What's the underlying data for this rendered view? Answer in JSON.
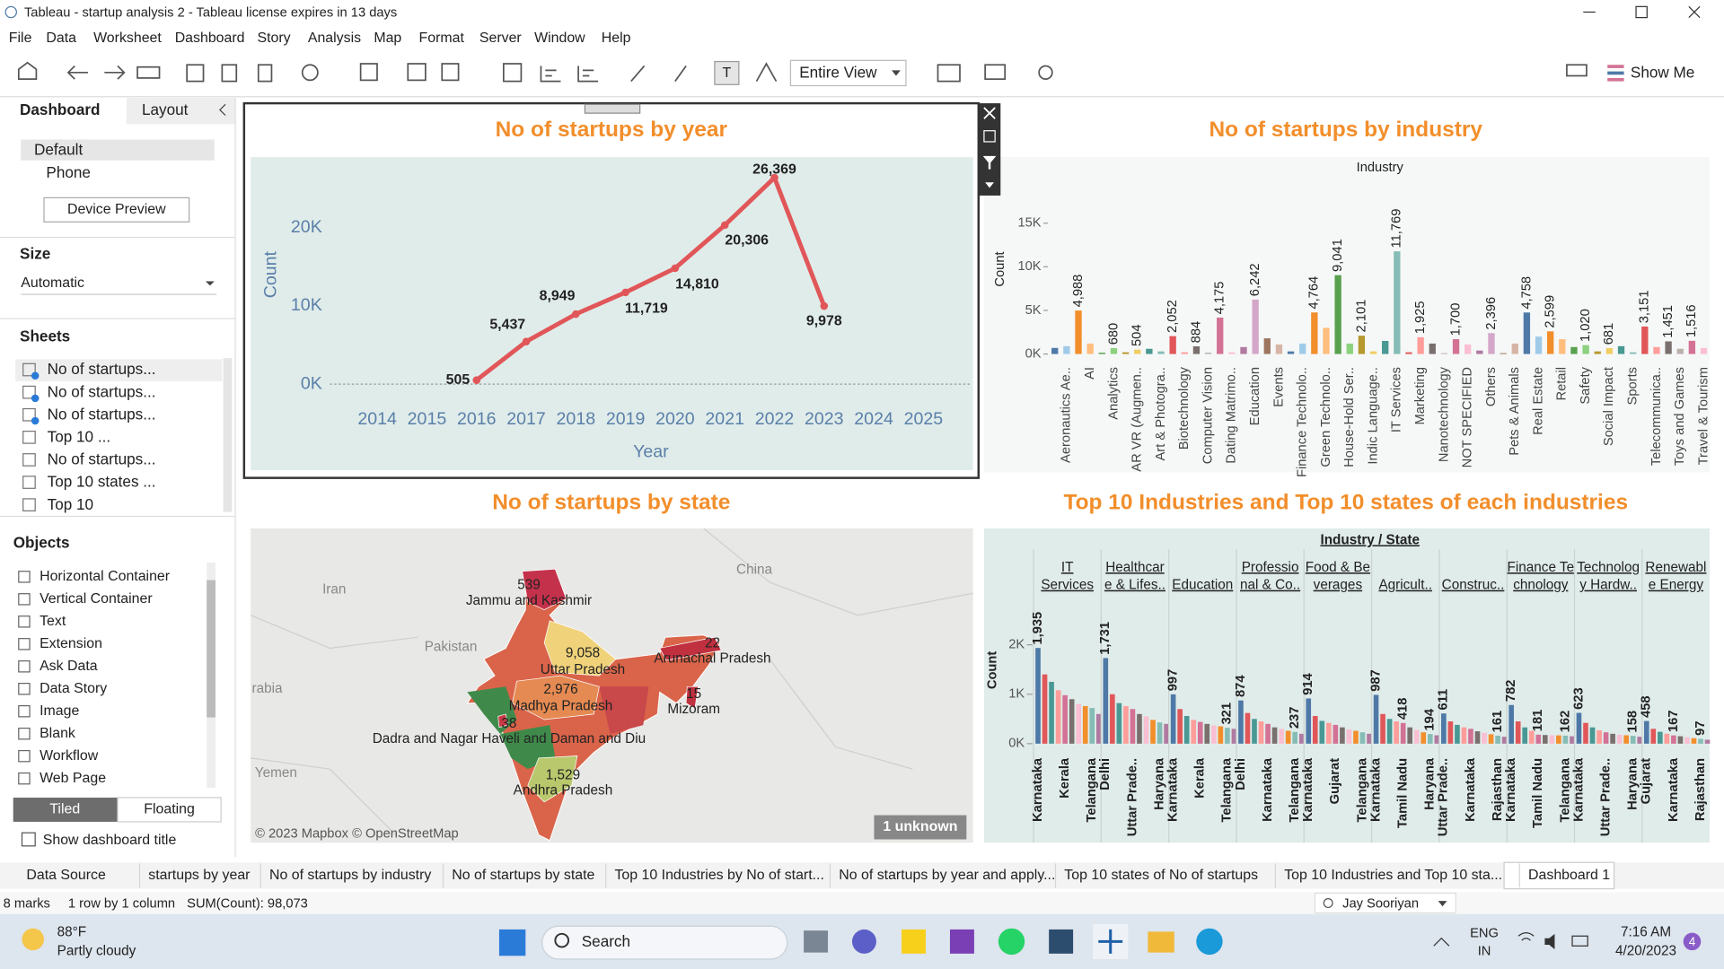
{
  "window": {
    "title": "Tableau - startup analysis 2 - Tableau license expires in 13 days"
  },
  "menu": [
    "File",
    "Data",
    "Worksheet",
    "Dashboard",
    "Story",
    "Analysis",
    "Map",
    "Format",
    "Server",
    "Window",
    "Help"
  ],
  "toolbar": {
    "view": "Entire View",
    "show_me": "Show Me"
  },
  "side_panel": {
    "tabs": [
      "Dashboard",
      "Layout"
    ],
    "devices": [
      "Default",
      "Phone"
    ],
    "device_preview": "Device Preview",
    "size_heading": "Size",
    "size_value": "Automatic",
    "sheets_heading": "Sheets",
    "sheets": [
      "No of startups...",
      "No of startups...",
      "No of startups...",
      "Top 10 ...",
      "No of startups...",
      "Top 10 states ...",
      "Top 10"
    ],
    "objects_heading": "Objects",
    "objects": [
      "Horizontal Container",
      "Vertical Container",
      "Text",
      "Extension",
      "Ask Data",
      "Data Story",
      "Image",
      "Blank",
      "Workflow",
      "Web Page"
    ],
    "layout_modes": [
      "Tiled",
      "Floating"
    ],
    "show_title": "Show dashboard title"
  },
  "chart_data": [
    {
      "type": "line",
      "title": "No of startups by year",
      "x_label": "Year",
      "y_label": "Count",
      "color": "#e15759",
      "x": [
        2014,
        2015,
        2016,
        2017,
        2018,
        2019,
        2020,
        2021,
        2022,
        2023,
        2024,
        2025
      ],
      "values": [
        null,
        null,
        505,
        5437,
        8949,
        11719,
        14810,
        20306,
        26369,
        9978,
        null,
        null
      ],
      "value_labels": [
        null,
        null,
        "505",
        "5,437",
        "8,949",
        "11,719",
        "14,810",
        "20,306",
        "26,369",
        "9,978",
        null,
        null
      ],
      "xlim": [
        2011.45,
        2026
      ],
      "xticks": [
        2014,
        2015,
        2016,
        2017,
        2018,
        2019,
        2020,
        2021,
        2022,
        2023,
        2024,
        2025
      ],
      "ylim": [
        -11000,
        29000
      ],
      "yticks": [
        {
          "value": 0,
          "label": "0K"
        },
        {
          "value": 10000,
          "label": "10K"
        },
        {
          "value": 20000,
          "label": "20K"
        }
      ]
    },
    {
      "type": "bar",
      "title": "No of startups by industry",
      "header": "Industry",
      "y_label": "Count",
      "palette": [
        "#4e79a7",
        "#a0cbe8",
        "#f28e2b",
        "#ffbe7d",
        "#59a14f",
        "#8cd17d",
        "#b6992d",
        "#f1ce63",
        "#499894",
        "#86bcb6",
        "#e15759",
        "#ff9d9a",
        "#79706e",
        "#bab0ac",
        "#d37295",
        "#fabfd2",
        "#b07aa1",
        "#d4a6c8",
        "#9d7660",
        "#d7b5a6"
      ],
      "categories": [
        null,
        "Aeronautics Ae..",
        null,
        "AI",
        null,
        "Analytics",
        null,
        "AR VR (Augmen..",
        null,
        "Art & Photogra..",
        null,
        "Biotechnology",
        null,
        "Computer Vision",
        null,
        "Dating Matrimo..",
        null,
        "Education",
        null,
        "Events",
        null,
        "Finance Technolo..",
        null,
        "Green Technolo..",
        null,
        "House-Hold Ser..",
        null,
        "Indic Language..",
        null,
        "IT Services",
        null,
        "Marketing",
        null,
        "Nanotechnology",
        null,
        "NOT SPECIFIED",
        null,
        "Others",
        null,
        "Pets & Animals",
        null,
        "Real Estate",
        null,
        "Retail",
        null,
        "Safety",
        null,
        "Social Impact",
        null,
        "Sports",
        null,
        "Telecommunica..",
        null,
        "Toys and Games",
        null,
        "Travel & Tourism"
      ],
      "values": [
        700,
        900,
        4988,
        1200,
        150,
        680,
        200,
        504,
        600,
        300,
        2052,
        200,
        884,
        150,
        4175,
        200,
        800,
        6242,
        1800,
        1100,
        300,
        1200,
        4764,
        3000,
        9041,
        1200,
        2101,
        300,
        1500,
        11769,
        200,
        1925,
        1200,
        100,
        1700,
        1100,
        400,
        2396,
        100,
        1200,
        4758,
        2000,
        2599,
        1700,
        800,
        1020,
        300,
        681,
        900,
        200,
        3151,
        800,
        1451,
        600,
        1516,
        700
      ],
      "value_labels": [
        null,
        null,
        "4,988",
        null,
        null,
        "680",
        null,
        "504",
        null,
        null,
        "2,052",
        null,
        "884",
        null,
        "4,175",
        null,
        null,
        "6,242",
        null,
        null,
        null,
        null,
        "4,764",
        null,
        "9,041",
        null,
        "2,101",
        null,
        null,
        "11,769",
        null,
        "1,925",
        null,
        null,
        "1,700",
        null,
        null,
        "2,396",
        null,
        null,
        "4,758",
        null,
        "2,599",
        null,
        null,
        "1,020",
        null,
        "681",
        null,
        null,
        "3,151",
        null,
        "1,451",
        null,
        "1,516",
        null
      ],
      "ylim": [
        -600,
        19800
      ],
      "yticks": [
        {
          "value": 0,
          "label": "0K"
        },
        {
          "value": 5000,
          "label": "5K"
        },
        {
          "value": 10000,
          "label": "10K"
        },
        {
          "value": 15000,
          "label": "15K"
        }
      ]
    },
    {
      "type": "map",
      "title": "No of startups by state",
      "credit": "© 2023 Mapbox © OpenStreetMap",
      "unknown": "1 unknown",
      "places": [
        "Iran",
        "Pakistan",
        "China",
        "rabia",
        "Yemen"
      ],
      "regions": [
        {
          "name": "Jammu and Kashmir",
          "value": 539,
          "value_label": "539",
          "color": "#c4314b"
        },
        {
          "name": "Uttar Pradesh",
          "value": 9058,
          "value_label": "9,058",
          "color": "#efd27a"
        },
        {
          "name": "Madhya Pradesh",
          "value": 2976,
          "value_label": "2,976",
          "color": "#e58a52"
        },
        {
          "name": "Dadra and Nagar Haveli and Daman and Diu",
          "value": 38,
          "value_label": "38",
          "color": "#c83a45"
        },
        {
          "name": "Andhra Pradesh",
          "value": 1529,
          "value_label": "1,529",
          "color": "#b9c86c"
        },
        {
          "name": "Arunachal Pradesh",
          "value": 22,
          "value_label": "22",
          "color": "#c0303f"
        },
        {
          "name": "Mizoram",
          "value": 15,
          "value_label": "15",
          "color": "#c0303f"
        }
      ]
    },
    {
      "type": "grouped_bar",
      "title": "Top 10 Industries and Top 10 states of each industries",
      "header": "Industry / State",
      "y_label": "Count",
      "colors": [
        "#4e79a7",
        "#e15759",
        "#499894",
        "#ff9d9a",
        "#d37295",
        "#79706e",
        "#fabfd2",
        "#f28e2b",
        "#86bcb6",
        "#b07aa1"
      ],
      "ylim": [
        -180,
        2930
      ],
      "yticks": [
        {
          "value": 0,
          "label": "0K"
        },
        {
          "value": 1000,
          "label": "1K"
        },
        {
          "value": 2000,
          "label": "2K"
        }
      ],
      "panels": [
        {
          "name": [
            "IT",
            "Services"
          ],
          "states": [
            "Karnataka",
            null,
            null,
            null,
            "Kerala",
            null,
            null,
            null,
            "Telangana",
            null
          ],
          "values": [
            1935,
            1400,
            1250,
            1080,
            980,
            900,
            800,
            760,
            720,
            600
          ],
          "value_labels": [
            "1,935",
            null,
            null,
            null,
            null,
            null,
            null,
            null,
            null,
            null
          ]
        },
        {
          "name": [
            "Healthcar",
            "e & Lifes.."
          ],
          "states": [
            "Delhi",
            null,
            null,
            null,
            "Uttar Prade..",
            null,
            null,
            null,
            "Haryana",
            null
          ],
          "values": [
            1731,
            1000,
            820,
            760,
            700,
            600,
            550,
            480,
            430,
            400
          ],
          "value_labels": [
            "1,731",
            null,
            null,
            null,
            null,
            null,
            null,
            null,
            null,
            null
          ]
        },
        {
          "name": [
            "Education"
          ],
          "states": [
            "Karnataka",
            null,
            null,
            null,
            "Kerala",
            null,
            null,
            null,
            "Telangana",
            null
          ],
          "values": [
            997,
            700,
            560,
            480,
            440,
            400,
            370,
            350,
            321,
            300
          ],
          "value_labels": [
            "997",
            null,
            null,
            null,
            null,
            null,
            null,
            null,
            "321",
            null
          ]
        },
        {
          "name": [
            "Professio",
            "nal & Co.."
          ],
          "states": [
            "Delhi",
            null,
            null,
            null,
            "Karnataka",
            null,
            null,
            null,
            "Telangana",
            null
          ],
          "values": [
            874,
            620,
            500,
            450,
            400,
            330,
            300,
            260,
            237,
            200
          ],
          "value_labels": [
            "874",
            null,
            null,
            null,
            null,
            null,
            null,
            null,
            "237",
            null
          ]
        },
        {
          "name": [
            "Food & Be",
            "verages"
          ],
          "states": [
            "Karnataka",
            null,
            null,
            null,
            "Gujarat",
            null,
            null,
            null,
            "Telangana",
            null
          ],
          "values": [
            914,
            560,
            460,
            420,
            380,
            330,
            290,
            260,
            230,
            200
          ],
          "value_labels": [
            "914",
            null,
            null,
            null,
            null,
            null,
            null,
            null,
            null,
            null
          ]
        },
        {
          "name": [
            "Agricult.."
          ],
          "states": [
            "Karnataka",
            null,
            null,
            null,
            "Tamil Nadu",
            null,
            null,
            null,
            "Haryana",
            null
          ],
          "values": [
            987,
            600,
            500,
            450,
            418,
            330,
            280,
            230,
            194,
            170
          ],
          "value_labels": [
            "987",
            null,
            null,
            null,
            "418",
            null,
            null,
            null,
            "194",
            null
          ]
        },
        {
          "name": [
            "Construc.."
          ],
          "states": [
            "Uttar Prade..",
            null,
            null,
            null,
            "Karnataka",
            null,
            null,
            null,
            "Rajasthan",
            null
          ],
          "values": [
            611,
            450,
            380,
            330,
            300,
            250,
            220,
            190,
            161,
            140
          ],
          "value_labels": [
            "611",
            null,
            null,
            null,
            null,
            null,
            null,
            null,
            "161",
            null
          ]
        },
        {
          "name": [
            "Finance Te",
            "chnology"
          ],
          "states": [
            "Karnataka",
            null,
            null,
            null,
            "Tamil Nadu",
            null,
            null,
            null,
            "Telangana",
            null
          ],
          "values": [
            782,
            450,
            330,
            260,
            181,
            175,
            170,
            168,
            162,
            150
          ],
          "value_labels": [
            "782",
            null,
            null,
            null,
            "181",
            null,
            null,
            null,
            "162",
            null
          ]
        },
        {
          "name": [
            "Technolog",
            "y Hardw.."
          ],
          "states": [
            "Karnataka",
            null,
            null,
            null,
            "Uttar Prade..",
            null,
            null,
            null,
            "Haryana",
            null
          ],
          "values": [
            623,
            420,
            330,
            270,
            230,
            200,
            180,
            170,
            158,
            140
          ],
          "value_labels": [
            "623",
            null,
            null,
            null,
            null,
            null,
            null,
            null,
            "158",
            null
          ]
        },
        {
          "name": [
            "Renewabl",
            "e Energy"
          ],
          "states": [
            "Gujarat",
            null,
            null,
            null,
            "Karnataka",
            null,
            null,
            null,
            "Rajasthan",
            null
          ],
          "values": [
            458,
            300,
            240,
            200,
            167,
            150,
            130,
            110,
            97,
            80
          ],
          "value_labels": [
            "458",
            null,
            null,
            null,
            "167",
            null,
            null,
            null,
            "97",
            null
          ]
        }
      ]
    }
  ],
  "sheet_tabs": [
    "Data Source",
    "startups by year",
    "No of startups by industry",
    "No of startups by state",
    "Top 10 Industries  by No of start...",
    "No of startups by year and apply...",
    "Top 10 states of No of startups",
    "Top 10 Industries and Top 10 sta...",
    "Dashboard 1"
  ],
  "status_bar": {
    "marks": "8 marks",
    "dims": "1 row by 1 column",
    "sum": "SUM(Count): 98,073",
    "user": "Jay Sooriyan"
  },
  "taskbar": {
    "temperature": "88°F",
    "weather": "Partly cloudy",
    "search": "Search",
    "lang1": "ENG",
    "lang2": "IN",
    "time": "7:16 AM",
    "date": "4/20/2023",
    "badge": "4"
  }
}
